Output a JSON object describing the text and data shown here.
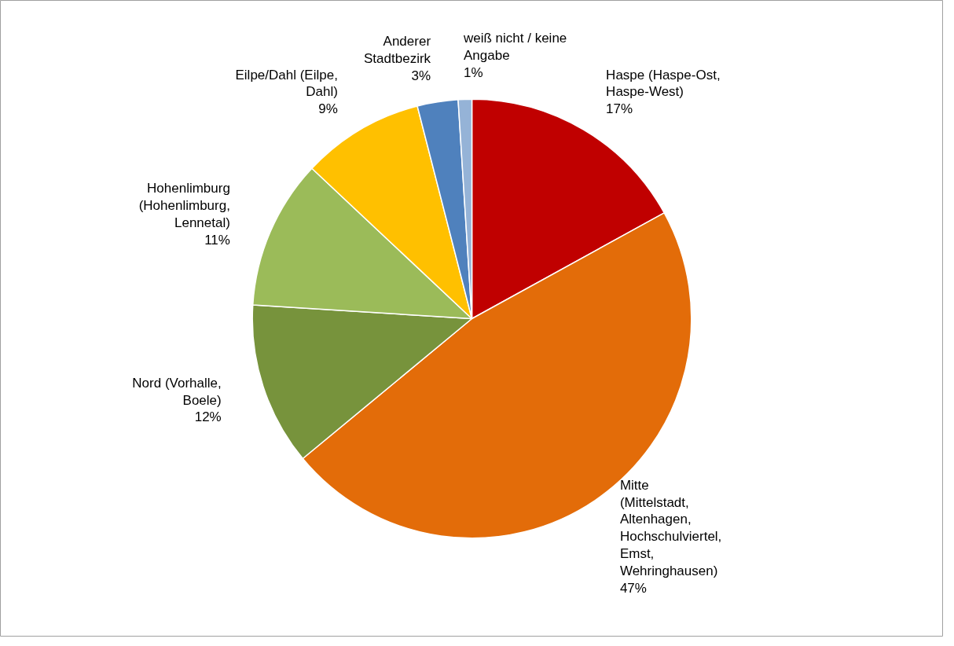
{
  "chart_data": {
    "type": "pie",
    "categories": [
      "Haspe (Haspe-Ost, Haspe-West)",
      "Mitte (Mittelstadt, Altenhagen, Hochschulviertel, Emst, Wehringhausen)",
      "Nord (Vorhalle, Boele)",
      "Hohenlimburg (Hohenlimburg, Lennetal)",
      "Eilpe/Dahl (Eilpe, Dahl)",
      "Anderer Stadtbezirk",
      "weiß nicht / keine Angabe"
    ],
    "values": [
      17,
      47,
      12,
      11,
      9,
      3,
      1
    ],
    "value_labels": [
      "17%",
      "47%",
      "12%",
      "11%",
      "9%",
      "3%",
      "1%"
    ],
    "colors": [
      "#c00000",
      "#e36c09",
      "#77933c",
      "#9bbb59",
      "#ffc000",
      "#4f81bd",
      "#95b3d7"
    ]
  }
}
